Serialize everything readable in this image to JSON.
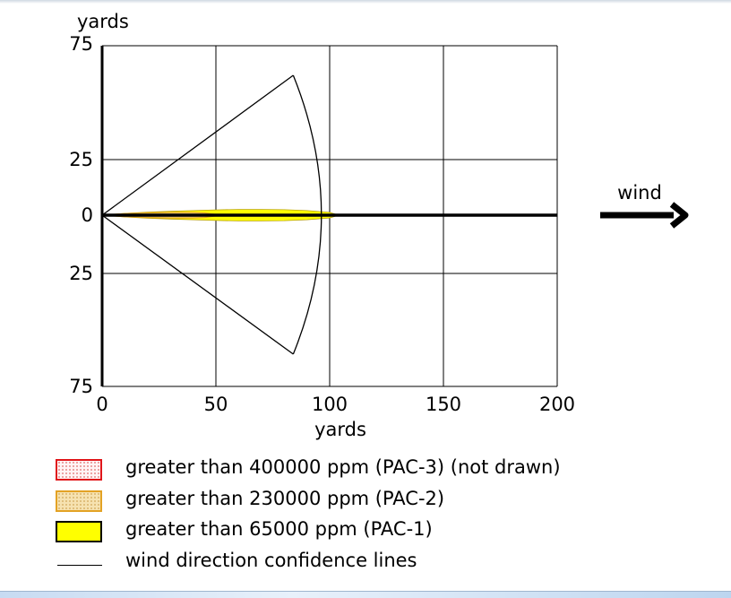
{
  "chart_data": {
    "type": "area",
    "title": "",
    "ylabel": "yards",
    "xlabel": "yards",
    "xlim": [
      0,
      200
    ],
    "x_ticks": [
      "0",
      "50",
      "100",
      "150",
      "200"
    ],
    "y_ticks": [
      "75",
      "25",
      "0",
      "25",
      "75"
    ],
    "grid": true,
    "wind_label": "wind",
    "series": [
      {
        "name": "greater than 65000 ppm (PAC-1)",
        "color": "#ffff00",
        "x": [
          0,
          10,
          20,
          30,
          40,
          50,
          60,
          70,
          80,
          90,
          100,
          104
        ],
        "half_width": [
          0,
          0.8,
          1.3,
          1.7,
          2.0,
          2.3,
          2.5,
          2.5,
          2.4,
          2.0,
          1.2,
          0
        ]
      },
      {
        "name": "greater than 230000 ppm (PAC-2)",
        "color": "#e3a224",
        "x": [
          0,
          10,
          20,
          30,
          40,
          45,
          52
        ],
        "half_width": [
          0,
          0.7,
          1.0,
          1.2,
          1.2,
          1.0,
          0
        ]
      },
      {
        "name": "wind direction confidence lines",
        "color": "#000000",
        "x": [
          0,
          84,
          104
        ],
        "half_width": [
          0,
          60,
          0
        ]
      }
    ]
  },
  "legend": [
    {
      "key": "pac3",
      "label": "greater than 400000 ppm (PAC-3) (not drawn)"
    },
    {
      "key": "pac2",
      "label": "greater than 230000 ppm (PAC-2)"
    },
    {
      "key": "pac1",
      "label": "greater than 65000 ppm (PAC-1)"
    },
    {
      "key": "line",
      "label": "wind direction confidence lines"
    }
  ]
}
